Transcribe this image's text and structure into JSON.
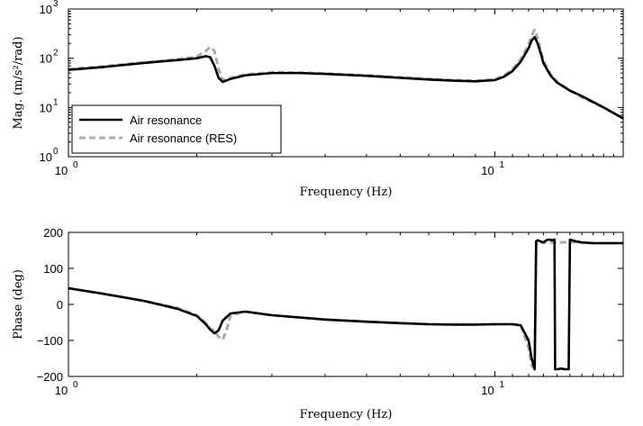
{
  "chart_data": [
    {
      "type": "line",
      "x_scale": "log",
      "y_scale": "log",
      "xlim": [
        1,
        20
      ],
      "ylim": [
        1,
        1000
      ],
      "xlabel": "Frequency (Hz)",
      "ylabel": "Mag. (m/s²/rad)",
      "x_ticks": [
        {
          "value": 1,
          "label": "10",
          "exp": "0"
        },
        {
          "value": 10,
          "label": "10",
          "exp": "1"
        }
      ],
      "y_ticks": [
        {
          "value": 1,
          "label": "10",
          "exp": "0"
        },
        {
          "value": 10,
          "label": "10",
          "exp": "1"
        },
        {
          "value": 100,
          "label": "10",
          "exp": "2"
        },
        {
          "value": 1000,
          "label": "10",
          "exp": "3"
        }
      ],
      "legend_position": "bottom-left",
      "series": [
        {
          "name": "Air resonance",
          "color": "#000000",
          "style": "solid",
          "x": [
            1,
            1.2,
            1.5,
            1.8,
            2.0,
            2.1,
            2.15,
            2.2,
            2.25,
            2.3,
            2.4,
            2.6,
            3.0,
            3.5,
            4,
            5,
            6,
            7,
            8,
            9,
            10,
            10.5,
            11,
            11.5,
            12,
            12.2,
            12.4,
            12.6,
            12.8,
            13,
            13.5,
            14,
            15,
            16,
            18,
            20
          ],
          "y": [
            58,
            66,
            80,
            92,
            100,
            110,
            105,
            70,
            40,
            33,
            38,
            45,
            50,
            50,
            48,
            44,
            40,
            37,
            35,
            34,
            36,
            42,
            55,
            85,
            160,
            230,
            270,
            200,
            130,
            80,
            45,
            32,
            22,
            17,
            10,
            6
          ]
        },
        {
          "name": "Air resonance (RES)",
          "color": "#aaaaaa",
          "style": "dashed",
          "x": [
            1,
            1.2,
            1.5,
            1.8,
            2.0,
            2.1,
            2.15,
            2.2,
            2.25,
            2.3,
            2.4,
            2.6,
            3.0,
            3.5,
            4,
            5,
            6,
            7,
            8,
            9,
            10,
            10.5,
            11,
            11.5,
            12,
            12.2,
            12.4,
            12.6,
            12.8,
            13,
            13.5,
            14,
            15,
            16,
            18,
            20
          ],
          "y": [
            60,
            68,
            82,
            95,
            108,
            140,
            170,
            140,
            60,
            36,
            40,
            47,
            52,
            51,
            49,
            45,
            41,
            38,
            36,
            35,
            37,
            44,
            60,
            95,
            190,
            290,
            380,
            260,
            150,
            90,
            48,
            33,
            22,
            16,
            10,
            6
          ]
        }
      ]
    },
    {
      "type": "line",
      "x_scale": "log",
      "y_scale": "linear",
      "xlim": [
        1,
        20
      ],
      "ylim": [
        -200,
        200
      ],
      "xlabel": "Frequency (Hz)",
      "ylabel": "Phase (deg)",
      "x_ticks": [
        {
          "value": 1,
          "label": "10",
          "exp": "0"
        },
        {
          "value": 10,
          "label": "10",
          "exp": "1"
        }
      ],
      "y_ticks": [
        {
          "value": -200,
          "label": "−200"
        },
        {
          "value": -100,
          "label": "−100"
        },
        {
          "value": 0,
          "label": "0"
        },
        {
          "value": 100,
          "label": "100"
        },
        {
          "value": 200,
          "label": "200"
        }
      ],
      "series": [
        {
          "name": "Air resonance",
          "color": "#000000",
          "style": "solid",
          "x": [
            1,
            1.2,
            1.5,
            1.8,
            2.0,
            2.1,
            2.15,
            2.2,
            2.25,
            2.3,
            2.4,
            2.6,
            3.0,
            4,
            5,
            6,
            7,
            8,
            9,
            10,
            11,
            11.5,
            12,
            12.2,
            12.4,
            12.5,
            12.6,
            12.8,
            13,
            13.2,
            13.4,
            13.6,
            13.8,
            13.85,
            14,
            14.3,
            14.6,
            14.9,
            15.0,
            15.5,
            16,
            17,
            18,
            20
          ],
          "y": [
            45,
            30,
            10,
            -12,
            -32,
            -55,
            -70,
            -80,
            -72,
            -45,
            -25,
            -20,
            -30,
            -42,
            -48,
            -52,
            -55,
            -56,
            -56,
            -55,
            -55,
            -58,
            -100,
            -150,
            -180,
            175,
            178,
            175,
            172,
            178,
            180,
            178,
            180,
            -180,
            -180,
            -178,
            -180,
            -180,
            180,
            175,
            172,
            170,
            170,
            170
          ]
        },
        {
          "name": "Air resonance (RES)",
          "color": "#aaaaaa",
          "style": "dashed",
          "x": [
            1,
            1.2,
            1.5,
            1.8,
            2.0,
            2.1,
            2.15,
            2.2,
            2.25,
            2.3,
            2.35,
            2.4,
            2.6,
            3.0,
            4,
            5,
            6,
            7,
            8,
            9,
            10,
            11,
            11.5,
            12,
            12.2,
            12.4,
            12.5,
            12.6,
            13,
            14,
            15,
            16,
            17,
            18,
            20
          ],
          "y": [
            45,
            30,
            10,
            -10,
            -30,
            -52,
            -68,
            -72,
            -90,
            -98,
            -70,
            -30,
            -20,
            -30,
            -42,
            -48,
            -52,
            -55,
            -56,
            -56,
            -55,
            -55,
            -58,
            -120,
            -170,
            -180,
            175,
            172,
            172,
            172,
            173,
            172,
            170,
            170,
            170
          ]
        }
      ]
    }
  ]
}
